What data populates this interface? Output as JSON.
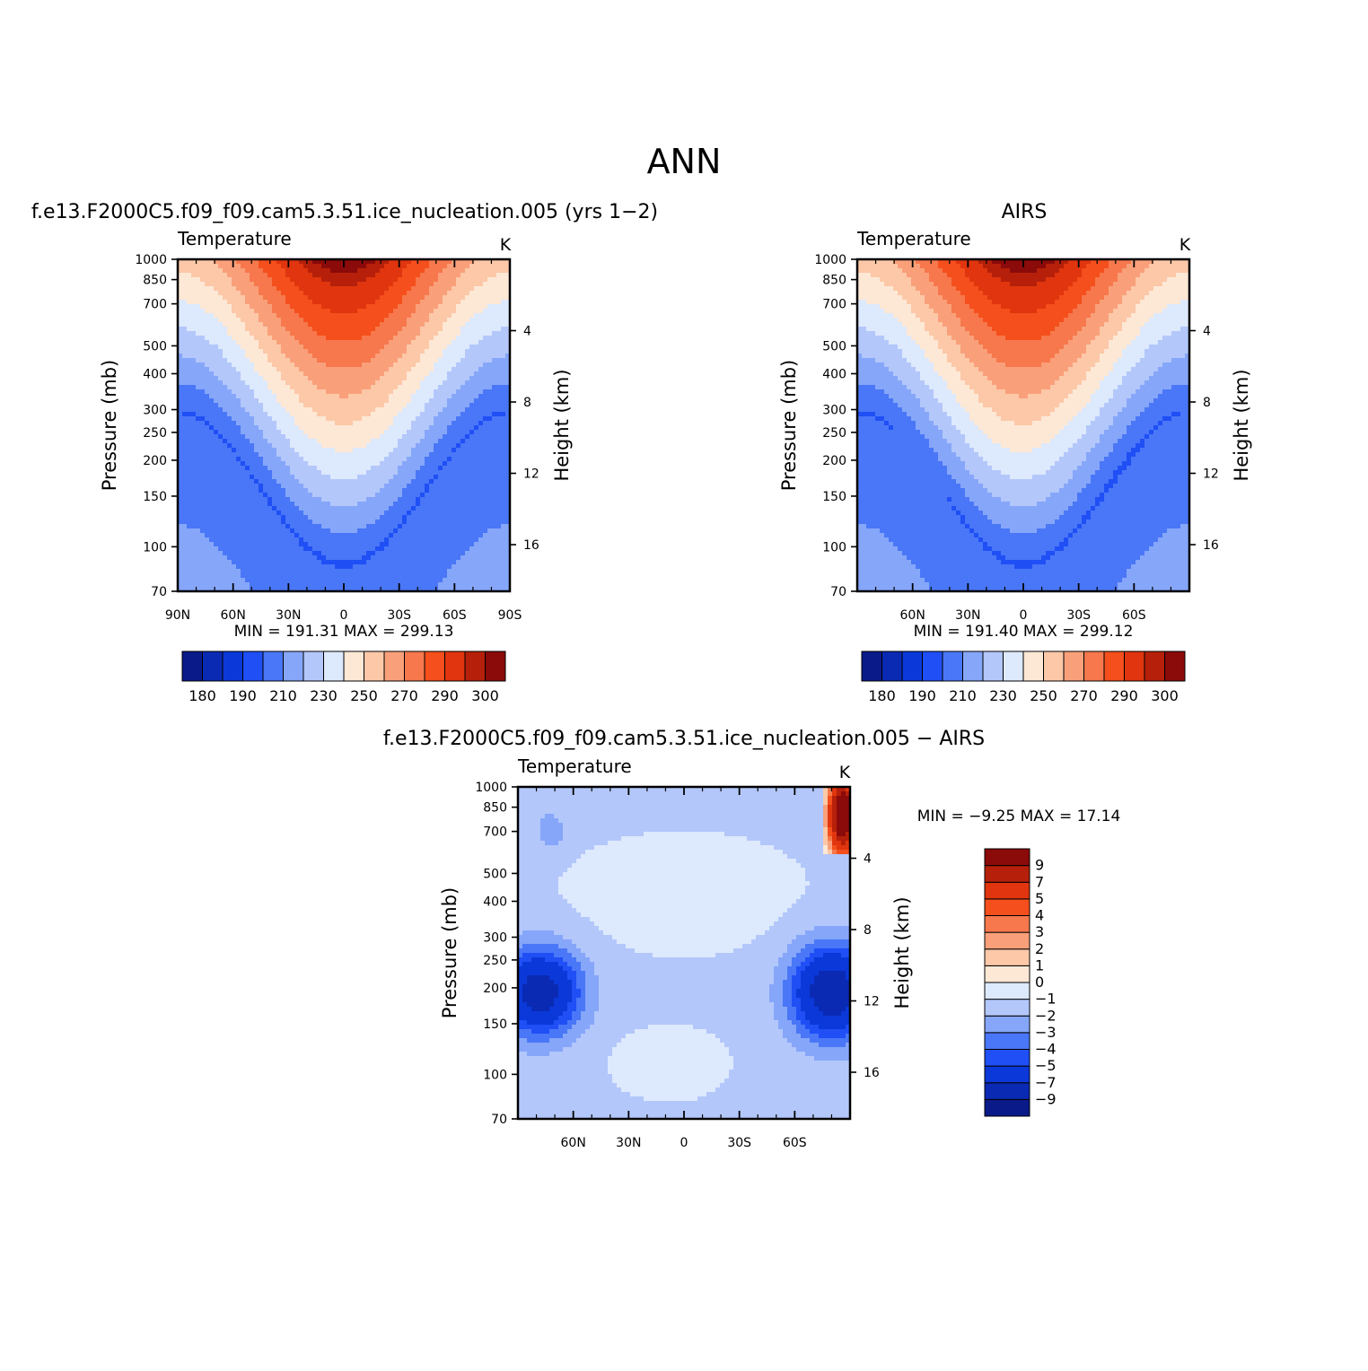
{
  "figure": {
    "title": "ANN"
  },
  "palettes": {
    "temperature": [
      "#0a1a88",
      "#0a2ab4",
      "#0b38d8",
      "#1f4ff5",
      "#4a77f7",
      "#86a6f9",
      "#b3c7fb",
      "#dde9fc",
      "#fde8d6",
      "#fcc8a8",
      "#f9a07a",
      "#f6784c",
      "#f44f1c",
      "#e0350e",
      "#b6200a",
      "#8b0a0a"
    ],
    "difference": [
      "#0a1a88",
      "#0a2ab4",
      "#0b38d8",
      "#1f4ff5",
      "#4a77f7",
      "#86a6f9",
      "#b3c7fb",
      "#dde9fc",
      "#fde8d6",
      "#fcc8a8",
      "#f9a07a",
      "#f6784c",
      "#f44f1c",
      "#e0350e",
      "#b6200a",
      "#8b0a0a"
    ]
  },
  "chart_data": [
    {
      "id": "model",
      "type": "heatmap",
      "title": "f.e13.F2000C5.f09_f09.cam5.3.51.ice_nucleation.005 (yrs 1−2)",
      "left_label": "Temperature",
      "units": "K",
      "ylabel": "Pressure (mb)",
      "ylabel2": "Height (km)",
      "xlim": [
        90,
        -90
      ],
      "ylim": [
        1000,
        70
      ],
      "xticks": [
        {
          "v": 90,
          "label": "90N"
        },
        {
          "v": 60,
          "label": "60N"
        },
        {
          "v": 30,
          "label": "30N"
        },
        {
          "v": 0,
          "label": "0"
        },
        {
          "v": -30,
          "label": "30S"
        },
        {
          "v": -60,
          "label": "60S"
        },
        {
          "v": -90,
          "label": "90S"
        }
      ],
      "yticks": [
        70,
        100,
        150,
        200,
        250,
        300,
        400,
        500,
        700,
        850,
        1000
      ],
      "height_ticks": [
        4,
        8,
        12,
        16
      ],
      "stats_text": "MIN =  191.31   MAX =  299.13",
      "min": 191.31,
      "max": 299.13,
      "scale_height_km": 7,
      "levels": [
        175,
        180,
        185,
        190,
        200,
        210,
        220,
        230,
        240,
        250,
        260,
        270,
        280,
        290,
        295,
        300
      ],
      "colorbar_labels": [
        {
          "index": 1,
          "label": "180"
        },
        {
          "index": 3,
          "label": "190"
        },
        {
          "index": 5,
          "label": "210"
        },
        {
          "index": 7,
          "label": "230"
        },
        {
          "index": 9,
          "label": "250"
        },
        {
          "index": 11,
          "label": "270"
        },
        {
          "index": 13,
          "label": "290"
        },
        {
          "index": 15,
          "label": "300"
        }
      ],
      "palette": "temperature",
      "field": "model"
    },
    {
      "id": "obs",
      "type": "heatmap",
      "title": "AIRS",
      "left_label": "Temperature",
      "units": "K",
      "ylabel": "Pressure (mb)",
      "ylabel2": "Height (km)",
      "xlim": [
        90,
        -90
      ],
      "ylim": [
        1000,
        70
      ],
      "xticks": [
        {
          "v": 60,
          "label": "60N"
        },
        {
          "v": 30,
          "label": "30N"
        },
        {
          "v": 0,
          "label": "0"
        },
        {
          "v": -30,
          "label": "30S"
        },
        {
          "v": -60,
          "label": "60S"
        }
      ],
      "yticks": [
        70,
        100,
        150,
        200,
        250,
        300,
        400,
        500,
        700,
        850,
        1000
      ],
      "height_ticks": [
        4,
        8,
        12,
        16
      ],
      "stats_text": "MIN =  191.40   MAX =  299.12",
      "min": 191.4,
      "max": 299.12,
      "scale_height_km": 7,
      "levels": [
        175,
        180,
        185,
        190,
        200,
        210,
        220,
        230,
        240,
        250,
        260,
        270,
        280,
        290,
        295,
        300
      ],
      "colorbar_labels": [
        {
          "index": 1,
          "label": "180"
        },
        {
          "index": 3,
          "label": "190"
        },
        {
          "index": 5,
          "label": "210"
        },
        {
          "index": 7,
          "label": "230"
        },
        {
          "index": 9,
          "label": "250"
        },
        {
          "index": 11,
          "label": "270"
        },
        {
          "index": 13,
          "label": "290"
        },
        {
          "index": 15,
          "label": "300"
        }
      ],
      "palette": "temperature",
      "field": "obs"
    },
    {
      "id": "diff",
      "type": "heatmap",
      "title": "f.e13.F2000C5.f09_f09.cam5.3.51.ice_nucleation.005  −  AIRS",
      "left_label": "Temperature",
      "units": "K",
      "ylabel": "Pressure (mb)",
      "ylabel2": "Height (km)",
      "xlim": [
        90,
        -90
      ],
      "ylim": [
        1000,
        70
      ],
      "xticks": [
        {
          "v": 60,
          "label": "60N"
        },
        {
          "v": 30,
          "label": "30N"
        },
        {
          "v": 0,
          "label": "0"
        },
        {
          "v": -30,
          "label": "30S"
        },
        {
          "v": -60,
          "label": "60S"
        }
      ],
      "yticks": [
        70,
        100,
        150,
        200,
        250,
        300,
        400,
        500,
        700,
        850,
        1000
      ],
      "height_ticks": [
        4,
        8,
        12,
        16
      ],
      "stats_text": "MIN =    −9.25   MAX =   17.14",
      "min": -9.25,
      "max": 17.14,
      "scale_height_km": 7,
      "levels": [
        -9,
        -7,
        -5,
        -4,
        -3,
        -2,
        -1,
        0,
        1,
        2,
        3,
        4,
        5,
        7,
        9
      ],
      "colorbar_labels": [
        {
          "index": 15,
          "label": "9"
        },
        {
          "index": 14,
          "label": "7"
        },
        {
          "index": 13,
          "label": "5"
        },
        {
          "index": 12,
          "label": "4"
        },
        {
          "index": 11,
          "label": "3"
        },
        {
          "index": 10,
          "label": "2"
        },
        {
          "index": 9,
          "label": "1"
        },
        {
          "index": 8,
          "label": "0"
        },
        {
          "index": 7,
          "label": "−1"
        },
        {
          "index": 6,
          "label": "−2"
        },
        {
          "index": 5,
          "label": "−3"
        },
        {
          "index": 4,
          "label": "−4"
        },
        {
          "index": 3,
          "label": "−5"
        },
        {
          "index": 2,
          "label": "−7"
        },
        {
          "index": 1,
          "label": "−9"
        }
      ],
      "palette": "difference",
      "field": "diff"
    }
  ]
}
